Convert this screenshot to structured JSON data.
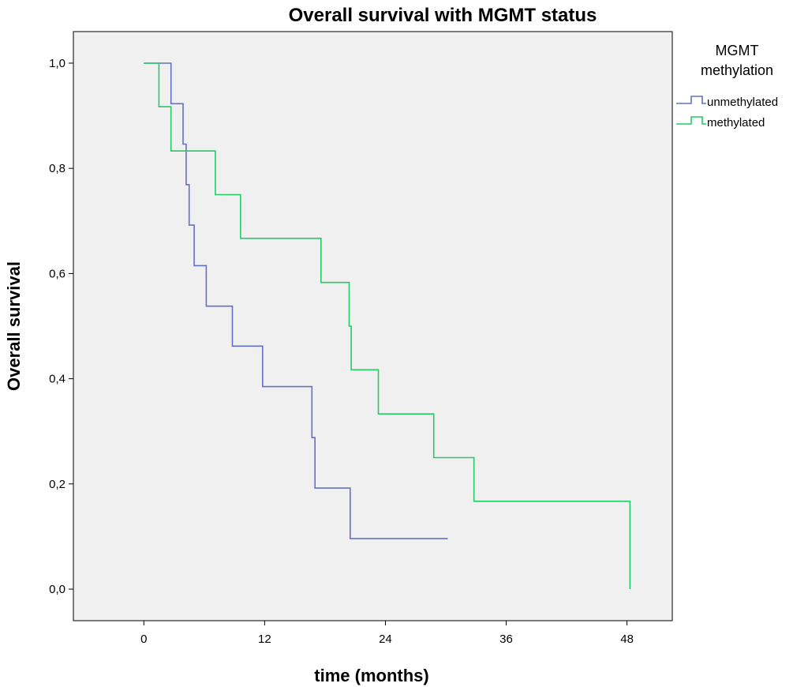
{
  "chart_data": {
    "type": "line",
    "subtype": "step (Kaplan-Meier)",
    "title": "Overall survival with MGMT status",
    "xlabel": "time (months)",
    "ylabel": "Overall survival",
    "xlim": [
      -7,
      52.5
    ],
    "ylim": [
      -0.06,
      1.06
    ],
    "x_ticks": [
      0,
      12,
      24,
      36,
      48
    ],
    "x_tick_labels": [
      "0",
      "12",
      "24",
      "36",
      "48"
    ],
    "y_ticks": [
      0.0,
      0.2,
      0.4,
      0.6,
      0.8,
      1.0
    ],
    "y_tick_labels": [
      "0,0",
      "0,2",
      "0,4",
      "0,6",
      "0,8",
      "1,0"
    ],
    "grid": false,
    "legend_position": "right",
    "legend_title": [
      "MGMT",
      "methylation"
    ],
    "series": [
      {
        "name": "unmethylated",
        "color": "#6470c6",
        "x": [
          0,
          2.7,
          3.9,
          4.2,
          4.5,
          5.0,
          5.8,
          6.0,
          6.2,
          8.8,
          11.8,
          16.7,
          17.0,
          20.0,
          20.5,
          29.8,
          30.2
        ],
        "y": [
          1.0,
          0.923,
          0.846,
          0.769,
          0.692,
          0.615,
          0.615,
          0.615,
          0.538,
          0.462,
          0.385,
          0.288,
          0.192,
          0.192,
          0.096,
          0.096,
          0.096
        ]
      },
      {
        "name": "methylated",
        "color": "#22cc66",
        "x": [
          0,
          1.5,
          2.7,
          7.1,
          9.6,
          17.6,
          20.4,
          20.6,
          23.3,
          28.8,
          32.8,
          48.3
        ],
        "y": [
          1.0,
          0.917,
          0.833,
          0.75,
          0.667,
          0.583,
          0.5,
          0.417,
          0.333,
          0.25,
          0.167,
          0.0
        ]
      }
    ]
  }
}
